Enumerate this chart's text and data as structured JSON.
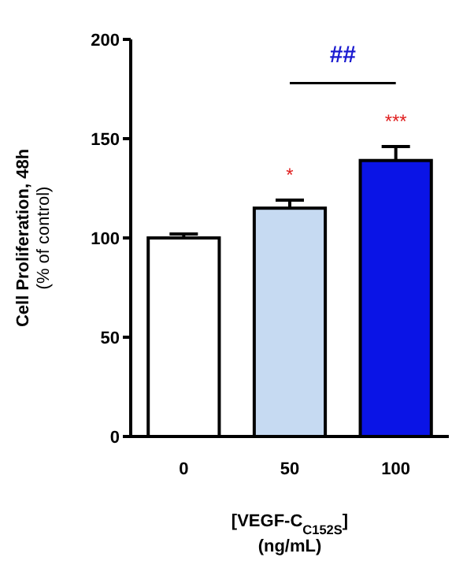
{
  "chart_data": {
    "type": "bar",
    "categories": [
      "0",
      "50",
      "100"
    ],
    "values": [
      100,
      115,
      139
    ],
    "errors": [
      2,
      4,
      7
    ],
    "colors": [
      "#ffffff",
      "#c6daf2",
      "#0a14e6"
    ],
    "ylim": [
      0,
      200
    ],
    "yticks": [
      0,
      50,
      100,
      150,
      200
    ],
    "ylabel": "Cell Proliferation, 48h\n(% of control)",
    "xlabel": "[VEGF-C$_{C152S}$]\n(ng/mL)",
    "annotations": [
      "*",
      "***",
      "##"
    ],
    "grid": false
  }
}
